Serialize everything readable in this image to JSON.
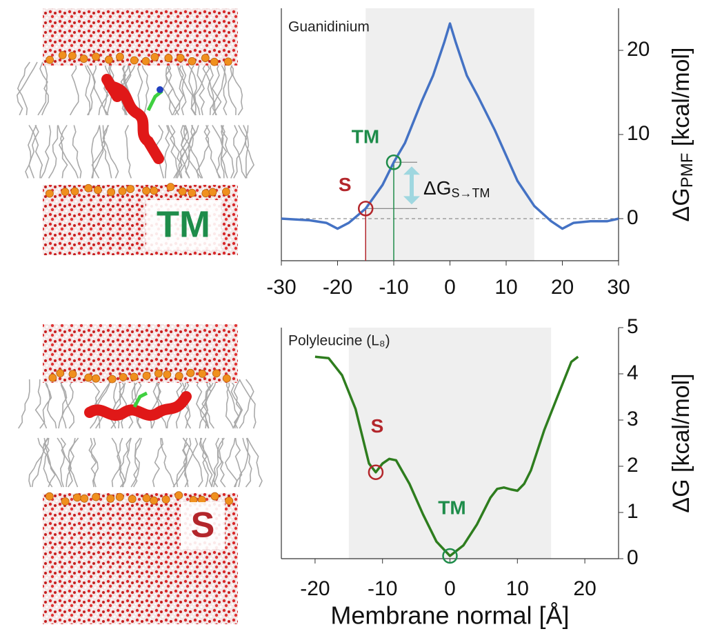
{
  "images": [
    {
      "label": "TM",
      "color": "#1e8c4a"
    },
    {
      "label": "S",
      "color": "#b3262b"
    }
  ],
  "chart_data": [
    {
      "type": "line",
      "title": "Guanidinium",
      "color": "#4472c4",
      "x": [
        -30,
        -25,
        -22,
        -20,
        -18,
        -15,
        -12,
        -10,
        -8,
        -5,
        -3,
        -1,
        0,
        1,
        3,
        5,
        8,
        10,
        12,
        15,
        18,
        20,
        22,
        25,
        28,
        30
      ],
      "values": [
        0,
        -0.2,
        -0.5,
        -1.2,
        -0.5,
        1.2,
        4,
        6.7,
        9,
        14,
        17,
        21,
        23.2,
        21,
        17,
        14.5,
        10.5,
        7.5,
        4.5,
        1.5,
        -0.3,
        -1.2,
        -0.5,
        -0.3,
        -0.3,
        0
      ],
      "xlim": [
        -30,
        30
      ],
      "xticks": [
        -30,
        -20,
        -10,
        0,
        10,
        20,
        30
      ],
      "ylim": [
        -5,
        25
      ],
      "yticks": [
        0,
        10,
        20
      ],
      "ylabel": [
        "ΔG",
        "PMF",
        " [kcal/mol]"
      ],
      "shade": [
        -15,
        15
      ],
      "zero_line": true,
      "markers": [
        {
          "label": "S",
          "x": -15,
          "y": 1.2,
          "color": "#b3262b"
        },
        {
          "label": "TM",
          "x": -10,
          "y": 6.7,
          "color": "#1e8c4a"
        }
      ],
      "annotation": [
        "ΔG",
        "S→TM"
      ]
    },
    {
      "type": "line",
      "title": "Polyleucine (L₈)",
      "color": "#2e7d1e",
      "x": [
        -20,
        -18,
        -16,
        -14,
        -13,
        -12,
        -11,
        -10,
        -9,
        -8,
        -6,
        -4,
        -2,
        0,
        2,
        4,
        6,
        7,
        8,
        9,
        10,
        11,
        12,
        14,
        16,
        18,
        19
      ],
      "values": [
        4.37,
        4.34,
        3.97,
        3.24,
        2.65,
        2.06,
        1.87,
        2.06,
        2.16,
        2.13,
        1.62,
        0.96,
        0.37,
        0.06,
        0.29,
        0.74,
        1.32,
        1.51,
        1.54,
        1.5,
        1.47,
        1.62,
        1.91,
        2.79,
        3.53,
        4.26,
        4.37
      ],
      "xlim": [
        -25,
        25
      ],
      "xticks": [
        -20,
        -10,
        0,
        10,
        20
      ],
      "ylim": [
        0,
        5
      ],
      "yticks": [
        0,
        1,
        2,
        3,
        4,
        5
      ],
      "ylabel": [
        "ΔG [kcal/mol]"
      ],
      "xlabel": "Membrane normal [Å]",
      "shade": [
        -15,
        15
      ],
      "zero_line": false,
      "markers": [
        {
          "label": "S",
          "x": -11,
          "y": 1.87,
          "color": "#b3262b"
        },
        {
          "label": "TM",
          "x": 0,
          "y": 0.06,
          "color": "#1e8c4a"
        }
      ]
    }
  ]
}
